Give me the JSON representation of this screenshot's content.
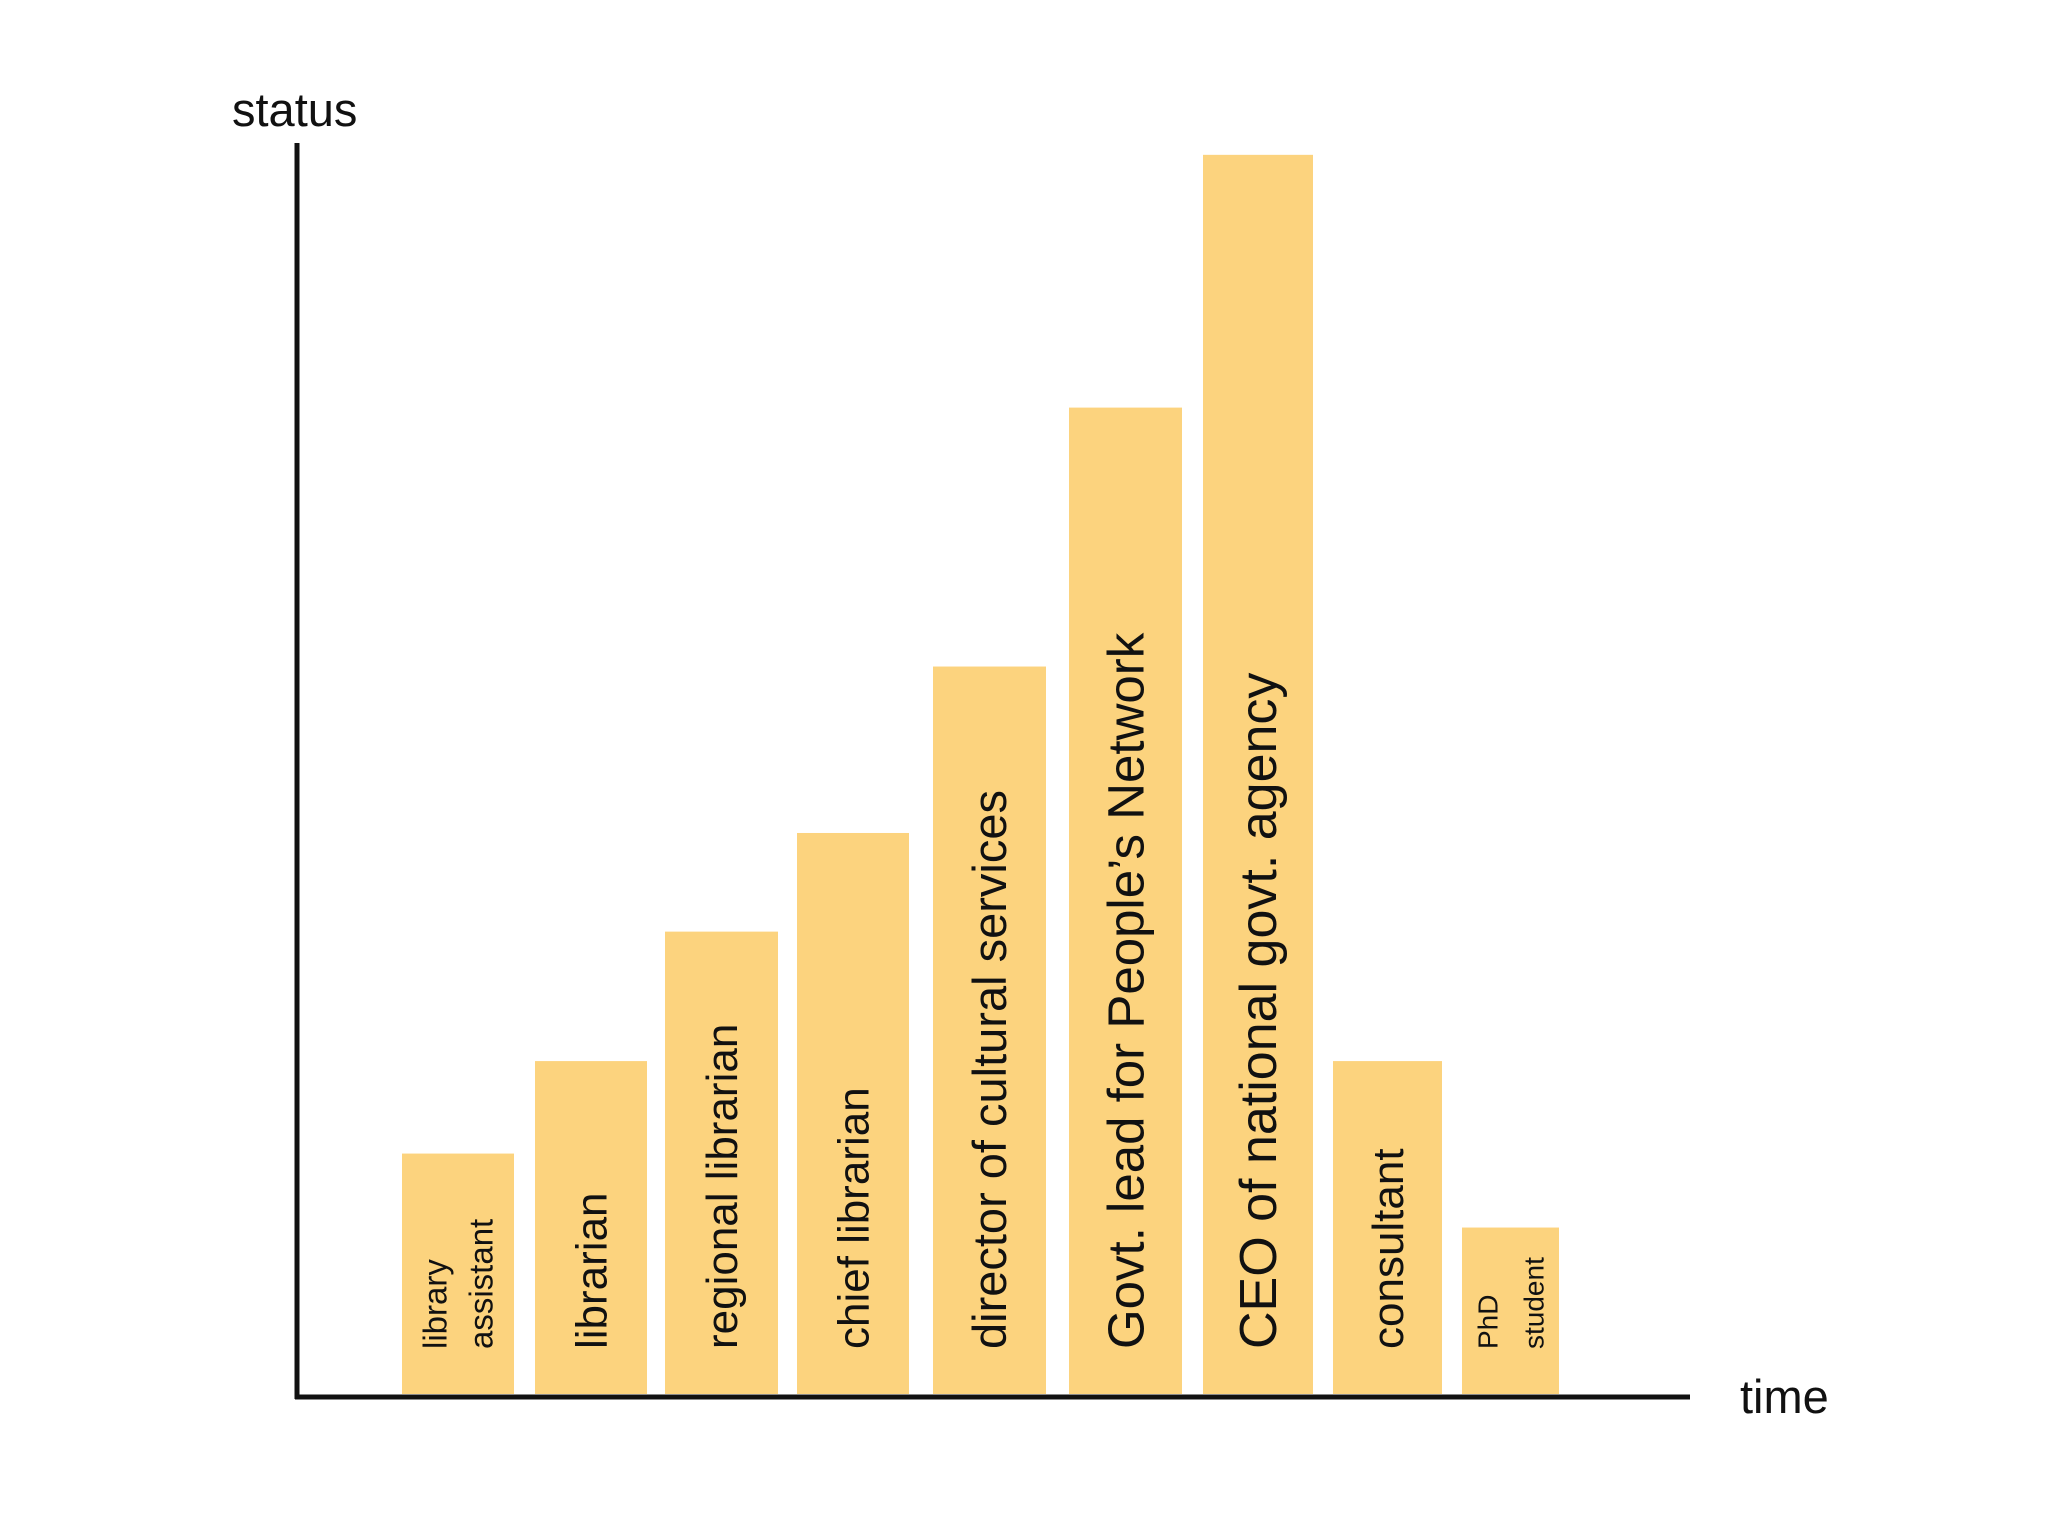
{
  "chart_data": {
    "type": "bar",
    "ylabel": "status",
    "xlabel": "time",
    "ylim": [
      0,
      100
    ],
    "grid": false,
    "bar_color": "#FCD37E",
    "categories": [
      [
        "library",
        "assistant"
      ],
      [
        "librarian"
      ],
      [
        "regional librarian"
      ],
      [
        "chief librarian"
      ],
      [
        "director of cultural services"
      ],
      [
        "Govt. lead for People’s Network"
      ],
      [
        "CEO of national govt. agency"
      ],
      [
        "consultant"
      ],
      [
        "PhD",
        "student"
      ]
    ],
    "values": [
      19.5,
      27,
      37.5,
      45.5,
      59,
      80,
      100.5,
      27,
      13.5
    ]
  }
}
